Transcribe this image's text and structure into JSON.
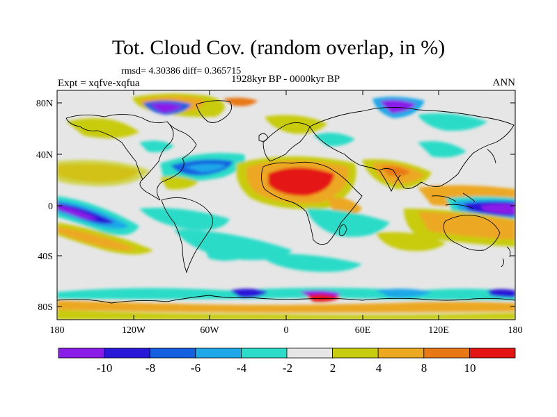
{
  "title": "Tot. Cloud Cov. (random overlap, in %)",
  "stats": "rmsd= 4.30386 diff= 0.365715",
  "period": "1928kyr BP - 0000kyr BP",
  "experiment": "Expt = xqfve-xqfua",
  "season": "ANN",
  "y_ticks": [
    "80N",
    "40N",
    "0",
    "40S",
    "80S"
  ],
  "x_ticks": [
    "180",
    "120W",
    "60W",
    "0",
    "60E",
    "120E",
    "180"
  ],
  "colorbar": {
    "labels": [
      "-10",
      "-8",
      "-6",
      "-4",
      "-2",
      "2",
      "4",
      "8",
      "10"
    ],
    "colors": [
      "#8a1ee8",
      "#2a18d8",
      "#1560e0",
      "#1fa8e8",
      "#2cdcc8",
      "#e6e6e6",
      "#c8cc10",
      "#eca820",
      "#e87814",
      "#e41414"
    ]
  }
}
